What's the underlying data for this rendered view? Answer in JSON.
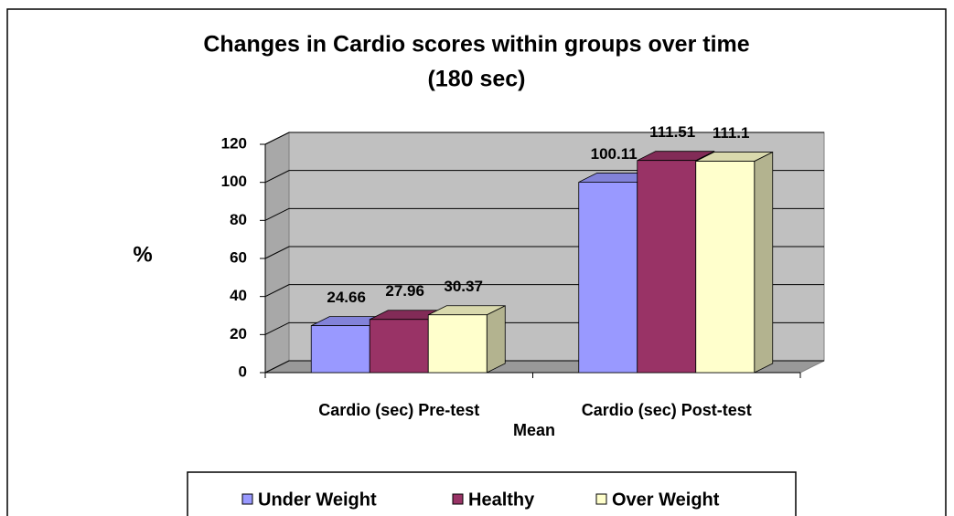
{
  "chart_data": {
    "type": "bar3d",
    "title": "Changes in Cardio scores within groups over time",
    "subtitle": "(180 sec)",
    "x_label": "Mean",
    "y_label": "%",
    "categories": [
      "Cardio (sec) Pre-test",
      "Cardio (sec) Post-test"
    ],
    "series": [
      {
        "name": "Under Weight",
        "color": "#9999ff",
        "values": [
          24.66,
          100.11
        ]
      },
      {
        "name": "Healthy",
        "color": "#993366",
        "values": [
          27.96,
          111.51
        ]
      },
      {
        "name": "Over Weight",
        "color": "#ffffcc",
        "values": [
          30.37,
          111.1
        ]
      }
    ],
    "ylim": [
      0,
      120
    ],
    "yticks": [
      0,
      20,
      40,
      60,
      80,
      100,
      120
    ],
    "grid": true,
    "legend": "bottom"
  }
}
